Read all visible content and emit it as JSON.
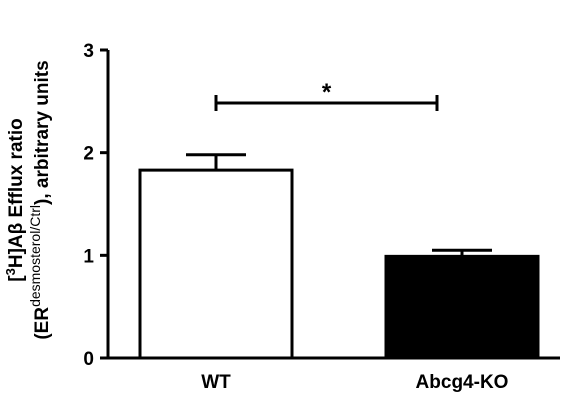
{
  "chart_data": {
    "type": "bar",
    "y_label": {
      "line1": [
        "[",
        "3",
        "H]Aβ Efflux ratio"
      ],
      "line2": [
        "(ER",
        "desmosterol/Ctrl",
        "), arbitrary units"
      ]
    },
    "categories": [
      "WT",
      "Abcg4-KO"
    ],
    "values": [
      1.83,
      0.99
    ],
    "errors": [
      0.15,
      0.06
    ],
    "colors": [
      "#ffffff",
      "#000000"
    ],
    "ylim": [
      0,
      3
    ],
    "yticks": [
      0,
      1,
      2,
      3
    ],
    "annotation": "*"
  }
}
